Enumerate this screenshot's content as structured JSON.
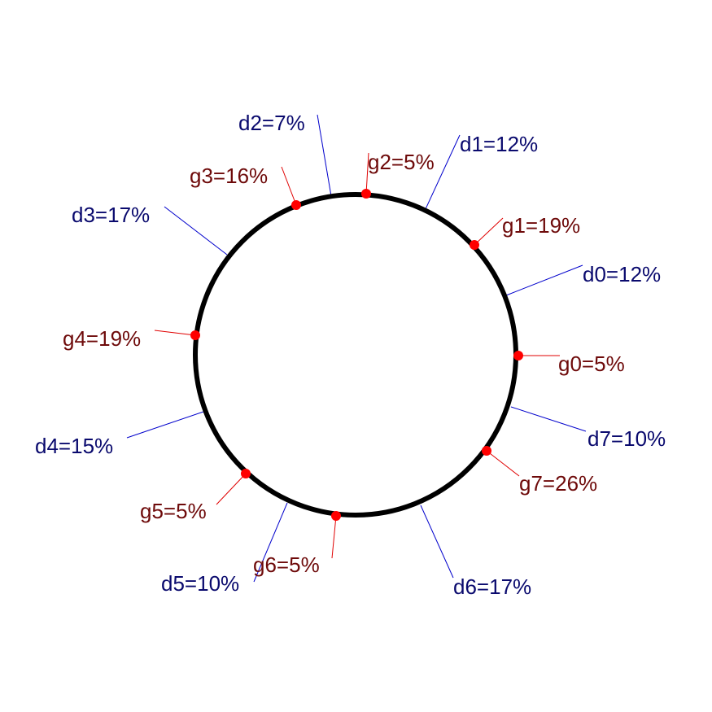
{
  "diagram": {
    "colors": {
      "d_line": "#0000cc",
      "d_text": "#0a0a6e",
      "g_line": "#e00000",
      "g_text": "#6e0a0a",
      "g_marker": "#ff0000",
      "ring": "#000000"
    },
    "d_markers": [
      {
        "label": "d0=12%"
      },
      {
        "label": "d1=12%"
      },
      {
        "label": "d2=7%"
      },
      {
        "label": "d3=17%"
      },
      {
        "label": "d4=15%"
      },
      {
        "label": "d5=10%"
      },
      {
        "label": "d6=17%"
      },
      {
        "label": "d7=10%"
      }
    ],
    "g_markers": [
      {
        "label": "g0=5%"
      },
      {
        "label": "g1=19%"
      },
      {
        "label": "g2=5%"
      },
      {
        "label": "g3=16%"
      },
      {
        "label": "g4=19%"
      },
      {
        "label": "g5=5%"
      },
      {
        "label": "g6=5%"
      },
      {
        "label": "g7=26%"
      }
    ]
  }
}
